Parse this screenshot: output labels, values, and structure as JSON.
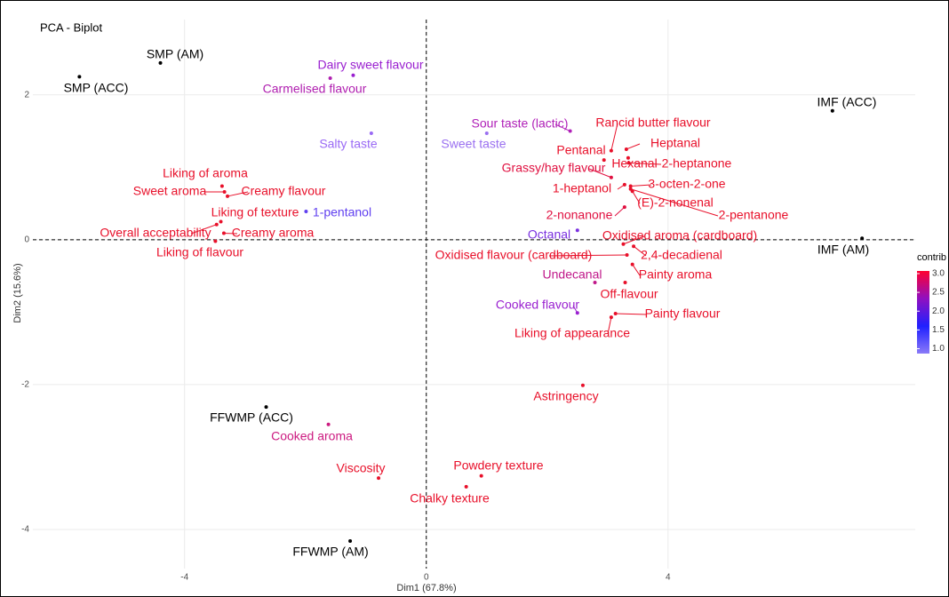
{
  "chart_data": {
    "type": "scatter",
    "title": "PCA - Biplot",
    "x_label": "Dim1 (67.8%)",
    "y_label": "Dim2 (15.6%)",
    "xlim": [
      -6.51,
      8.09
    ],
    "ylim": [
      -4.54,
      3.04
    ],
    "xticks": [
      -4,
      0,
      4
    ],
    "yticks": [
      -4,
      -2,
      0,
      2
    ],
    "grid": true,
    "individuals": {
      "color": "#000000",
      "labels": [
        "SMP (AM)",
        "SMP (ACC)",
        "IMF (ACC)",
        "IMF (AM)",
        "FFWMP (ACC)",
        "FFWMP (AM)"
      ],
      "x": [
        -4.4,
        -5.74,
        6.72,
        7.21,
        -2.65,
        -1.26
      ],
      "y": [
        2.44,
        2.25,
        1.78,
        0.02,
        -2.31,
        -4.16
      ]
    },
    "variables": {
      "labels": [
        "Dairy sweet flavour",
        "Carmelised flavour",
        "Salty taste",
        "Sweet taste",
        "Sour taste (lactic)",
        "Rancid butter flavour",
        "Pentanal",
        "Heptanal",
        "Hexanal",
        "2-heptanone",
        "Grassy/hay flavour",
        "1-heptanol",
        "3-octen-2-one",
        "(E)-2-nonenal",
        "2-pentanone",
        "2-nonanone",
        "Octanal",
        "Oxidised aroma (cardboard)",
        "Oxidised flavour (cardboard)",
        "2,4-decadienal",
        "Painty aroma",
        "Undecanal",
        "Off-flavour",
        "Cooked flavour",
        "Painty flavour",
        "Liking of appearance",
        "Astringency",
        "Liking of aroma",
        "Sweet aroma",
        "Creamy flavour",
        "Liking of texture",
        "1-pentanol",
        "Overall acceptability",
        "Creamy aroma",
        "Liking of flavour",
        "Cooked aroma",
        "Viscosity",
        "Powdery texture",
        "Chalky texture"
      ],
      "x": [
        -1.21,
        -1.59,
        -0.91,
        1.0,
        2.38,
        3.06,
        2.94,
        3.31,
        3.34,
        3.35,
        3.06,
        3.28,
        3.38,
        3.41,
        3.38,
        3.28,
        2.5,
        3.26,
        3.32,
        3.43,
        3.41,
        2.79,
        3.29,
        2.5,
        3.13,
        3.06,
        2.59,
        -3.38,
        -3.34,
        -3.29,
        -3.4,
        -1.99,
        -3.47,
        -3.35,
        -3.49,
        -1.62,
        -0.79,
        0.91,
        0.66
      ],
      "y": [
        2.27,
        2.23,
        1.47,
        1.47,
        1.5,
        1.23,
        1.1,
        1.25,
        1.13,
        1.06,
        0.86,
        0.76,
        0.74,
        0.67,
        0.7,
        0.45,
        0.13,
        -0.06,
        -0.21,
        -0.09,
        -0.34,
        -0.59,
        -0.59,
        -1.01,
        -1.02,
        -1.07,
        -2.01,
        0.74,
        0.66,
        0.6,
        0.25,
        0.39,
        0.21,
        0.09,
        -0.02,
        -2.55,
        -3.29,
        -3.26,
        -3.41
      ],
      "colors": [
        "#9a20d0",
        "#b020b0",
        "#9a6af5",
        "#9a70f0",
        "#b020b8",
        "#e8102a",
        "#e8102a",
        "#e8102a",
        "#e8102a",
        "#e8102a",
        "#e01040",
        "#e8102a",
        "#e8102a",
        "#e8102a",
        "#e8102a",
        "#e01040",
        "#7a30e0",
        "#e8102a",
        "#e8102a",
        "#e8102a",
        "#e8102a",
        "#c0188a",
        "#e8102a",
        "#9a20d0",
        "#e8102a",
        "#e8102a",
        "#e8102a",
        "#e8102a",
        "#e8102a",
        "#e8102a",
        "#e8102a",
        "#6040f0",
        "#e8102a",
        "#e8102a",
        "#e8102a",
        "#cc1a80",
        "#e8102a",
        "#e8102a",
        "#e8102a"
      ]
    },
    "legend": {
      "title": "contrib",
      "lim": [
        0.87,
        3.07
      ],
      "colors": [
        "#8a7af8",
        "#2020ff",
        "#9010c0",
        "#ff0030"
      ],
      "ticks": [
        {
          "value": 3.0,
          "label": "3.0"
        },
        {
          "value": 2.5,
          "label": "2.5"
        },
        {
          "value": 2.0,
          "label": "2.0"
        },
        {
          "value": 1.5,
          "label": "1.5"
        },
        {
          "value": 1.0,
          "label": "1.0"
        }
      ]
    }
  }
}
